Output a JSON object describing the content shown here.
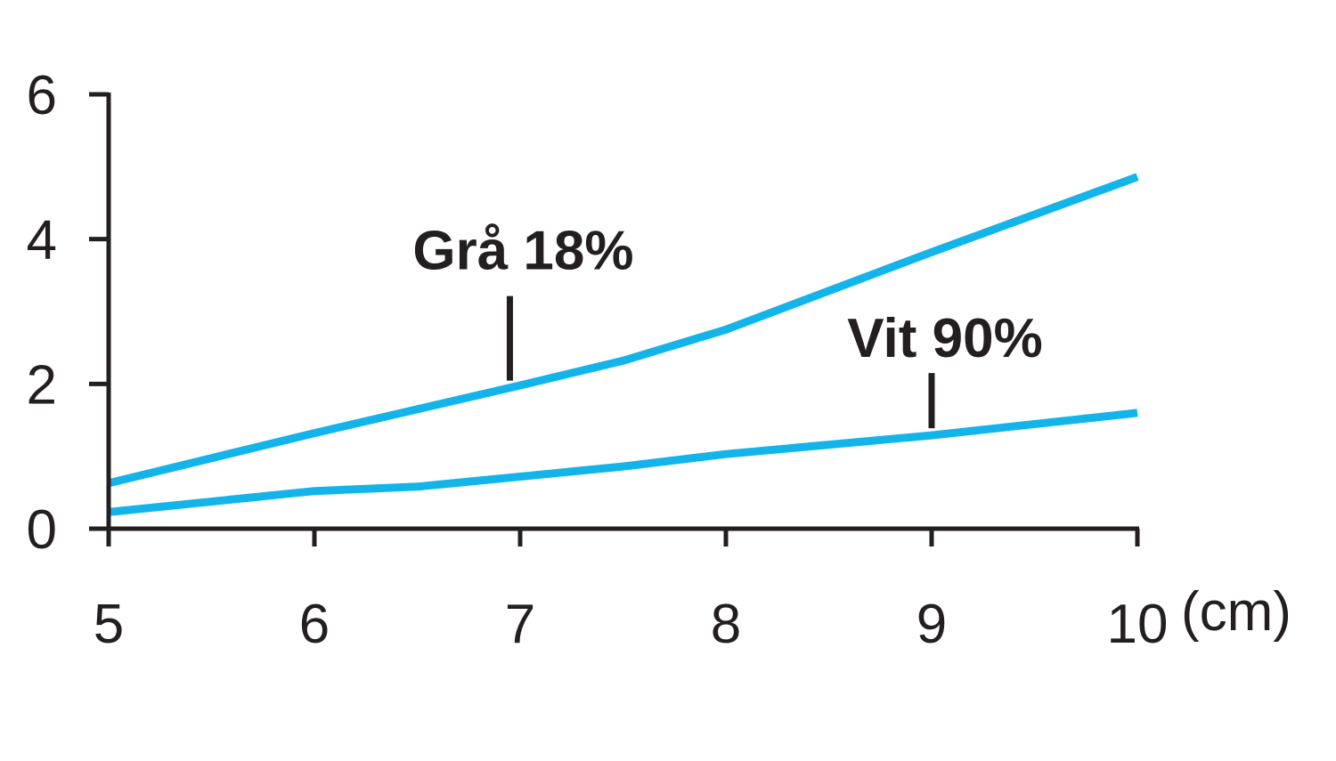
{
  "chart_data": {
    "type": "line",
    "xlabel": "",
    "ylabel": "",
    "x_unit": "(cm)",
    "xlim": [
      5,
      10
    ],
    "ylim": [
      0,
      6
    ],
    "x_ticks": [
      "5",
      "6",
      "7",
      "8",
      "9",
      "10"
    ],
    "y_ticks": [
      "0",
      "2",
      "4",
      "6"
    ],
    "grid": false,
    "legend": "none",
    "colors": {
      "line": "#12b4ea",
      "axis": "#231f20"
    },
    "series": [
      {
        "name": "Grå 18%",
        "x": [
          5,
          6,
          7,
          7.5,
          8,
          9,
          10
        ],
        "y": [
          0.63,
          1.32,
          1.98,
          2.32,
          2.75,
          3.82,
          4.86
        ]
      },
      {
        "name": "Vit 90%",
        "x": [
          5,
          6,
          6.5,
          7.5,
          8,
          9,
          10
        ],
        "y": [
          0.23,
          0.52,
          0.58,
          0.86,
          1.03,
          1.29,
          1.6
        ]
      }
    ],
    "annotations": [
      {
        "text": "Grå 18%",
        "series": 0,
        "x": 6.95
      },
      {
        "text": "Vit 90%",
        "series": 1,
        "x": 9
      }
    ]
  }
}
